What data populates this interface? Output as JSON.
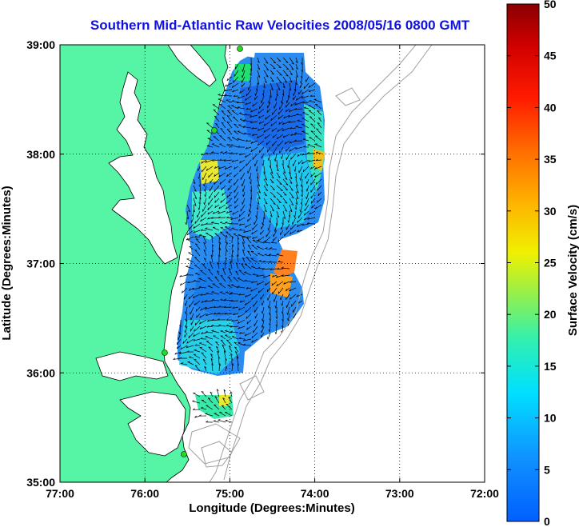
{
  "title": "Southern Mid-Atlantic Raw Velocities 2008/05/16 0800 GMT",
  "x_axis": {
    "label": "Longitude (Degrees:Minutes)",
    "ticks": [
      "77:00",
      "76:00",
      "75:00",
      "74:00",
      "73:00",
      "72:00"
    ],
    "range": [
      -77,
      -72
    ]
  },
  "y_axis": {
    "label": "Latitude (Degrees:Minutes)",
    "ticks": [
      "39:00",
      "38:00",
      "37:00",
      "36:00",
      "35:00"
    ],
    "range": [
      35,
      39
    ]
  },
  "colorbar": {
    "label": "Surface Velocity (cm/s)",
    "ticks": [
      "50",
      "45",
      "40",
      "35",
      "30",
      "25",
      "20",
      "15",
      "10",
      "5",
      "0"
    ],
    "range": [
      0,
      50
    ],
    "colormap": "jet"
  },
  "colors": {
    "land": "#55f5a5",
    "title": "#1010e0",
    "bathymetry": "#a0a0a0",
    "stations": "#22dd22"
  },
  "grid": "dotted",
  "stations_count": 4
}
